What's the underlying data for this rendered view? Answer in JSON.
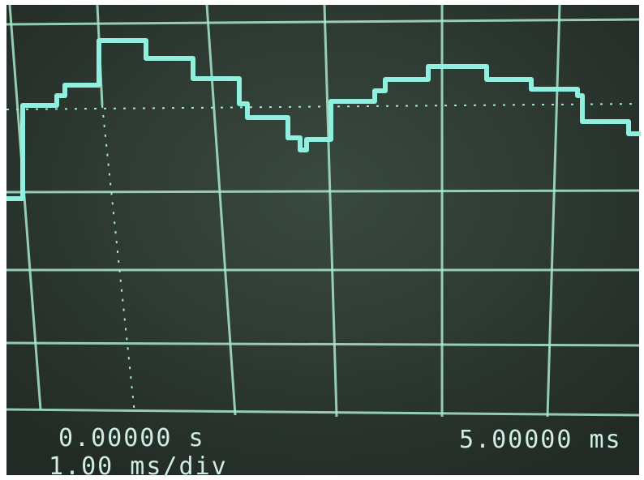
{
  "readout": {
    "start_time": "0.00000 s",
    "timebase": "1.00 ms/div",
    "end_time": "5.00000 ms"
  }
}
